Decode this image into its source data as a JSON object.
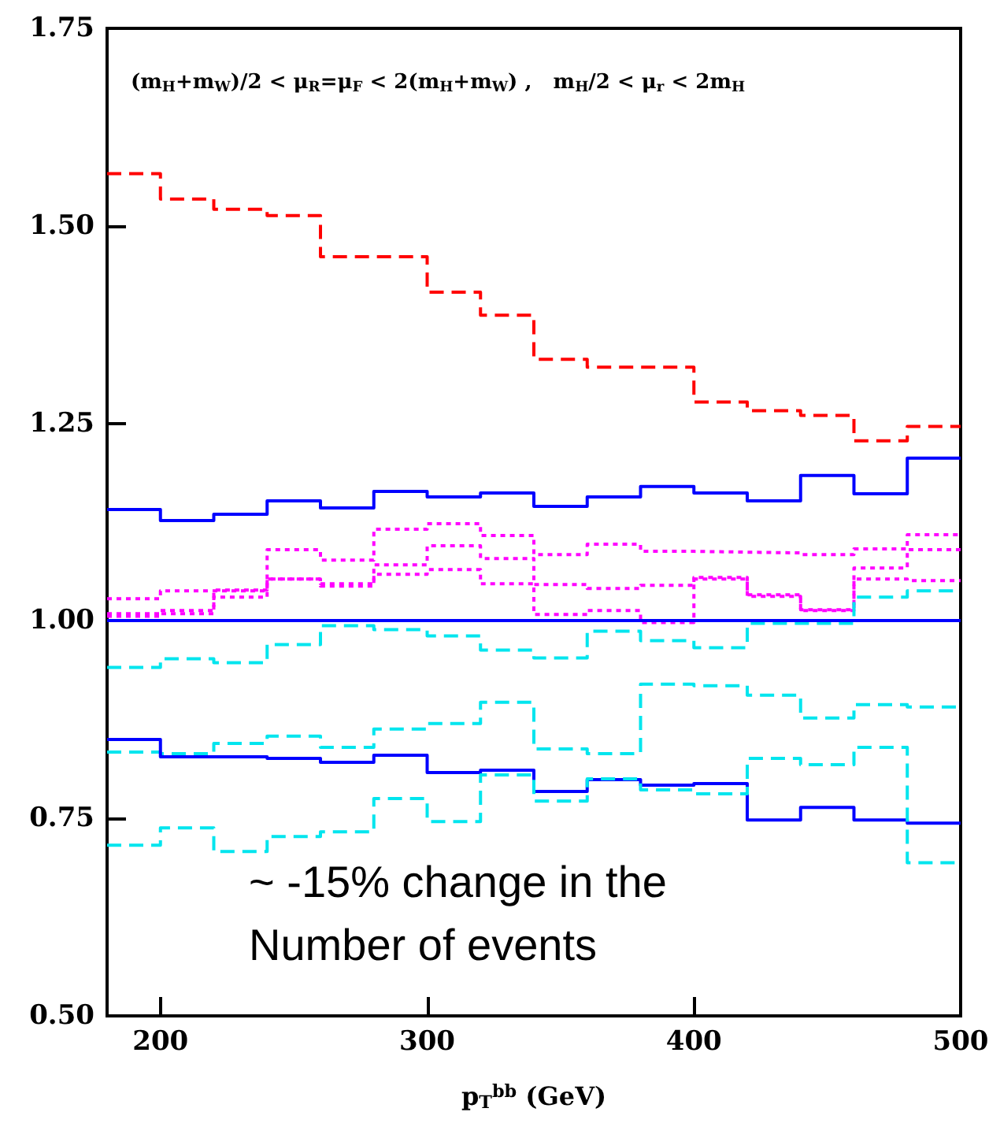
{
  "chart_data": {
    "type": "step",
    "title": "(m$_{H}$+m$_{W}$)/2 < μ$_{R}$=μ$_{F}$ < 2(m$_{H}$+m$_{W}$) ,   m$_{H}$/2 < μ$_{r}$ < 2m$_{H}$",
    "xlabel": "p$_{T}$$^{bb}$ (GeV)",
    "annotations": [
      "~ -15% change in the\nNumber of events"
    ],
    "x": [
      180,
      200,
      220,
      240,
      260,
      280,
      300,
      320,
      340,
      360,
      380,
      400,
      420,
      440,
      460,
      480,
      500
    ],
    "series": [
      {
        "color": "#ff0000",
        "line_style": "dashed",
        "values": [
          1.566,
          1.534,
          1.521,
          1.513,
          1.461,
          1.461,
          1.416,
          1.387,
          1.331,
          1.321,
          1.321,
          1.277,
          1.266,
          1.26,
          1.228,
          1.246,
          1.246
        ]
      },
      {
        "color": "#0000ff",
        "line_style": "solid",
        "values": [
          1.141,
          1.127,
          1.135,
          1.152,
          1.143,
          1.164,
          1.157,
          1.162,
          1.145,
          1.157,
          1.17,
          1.162,
          1.152,
          1.184,
          1.161,
          1.206,
          1.206
        ]
      },
      {
        "color": "#ff00ff",
        "line_style": "dotted",
        "values": [
          1.028,
          1.038,
          1.038,
          1.09,
          1.077,
          1.116,
          1.123,
          1.108,
          1.084,
          1.097,
          1.088,
          1.087,
          1.086,
          1.084,
          1.091,
          1.109,
          1.109
        ]
      },
      {
        "color": "#ff00ff",
        "line_style": "dotted",
        "values": [
          1.009,
          1.013,
          1.039,
          1.053,
          1.044,
          1.071,
          1.095,
          1.079,
          1.046,
          1.041,
          1.045,
          1.055,
          1.033,
          1.014,
          1.067,
          1.09,
          1.09
        ]
      },
      {
        "color": "#ff00ff",
        "line_style": "dotted",
        "values": [
          1.006,
          1.009,
          1.03,
          1.053,
          1.047,
          1.059,
          1.065,
          1.047,
          1.008,
          1.013,
          0.998,
          1.053,
          1.031,
          1.013,
          1.053,
          1.051,
          1.051
        ]
      },
      {
        "color": "#00e5ee",
        "line_style": "dashed",
        "values": [
          0.941,
          0.952,
          0.947,
          0.97,
          0.994,
          0.989,
          0.981,
          0.963,
          0.953,
          0.987,
          0.975,
          0.966,
          0.997,
          0.997,
          1.03,
          1.038,
          1.038
        ]
      },
      {
        "color": "#00e5ee",
        "line_style": "dashed",
        "values": [
          0.834,
          0.832,
          0.845,
          0.854,
          0.84,
          0.863,
          0.87,
          0.897,
          0.838,
          0.832,
          0.92,
          0.918,
          0.906,
          0.877,
          0.894,
          0.891,
          0.891
        ]
      },
      {
        "color": "#0000ff",
        "line_style": "solid",
        "values": [
          0.85,
          0.828,
          0.828,
          0.826,
          0.821,
          0.83,
          0.808,
          0.811,
          0.784,
          0.799,
          0.792,
          0.794,
          0.748,
          0.764,
          0.748,
          0.744,
          0.744
        ]
      },
      {
        "color": "#00e5ee",
        "line_style": "dashed",
        "values": [
          0.716,
          0.738,
          0.708,
          0.727,
          0.733,
          0.775,
          0.746,
          0.805,
          0.772,
          0.8,
          0.786,
          0.781,
          0.826,
          0.818,
          0.84,
          0.694,
          0.694
        ]
      }
    ],
    "ref_lines": [
      {
        "axis": "y",
        "value": 1.0,
        "color": "#0000ff"
      }
    ],
    "xlim": [
      180,
      500
    ],
    "xticks": [
      200,
      300,
      400,
      500
    ],
    "ylim": [
      0.5,
      1.75
    ],
    "yticks": [
      {
        "value": 0.5,
        "label": "0.50"
      },
      {
        "value": 0.75,
        "label": "0.75"
      },
      {
        "value": 1.0,
        "label": "1.00"
      },
      {
        "value": 1.25,
        "label": "1.25"
      },
      {
        "value": 1.5,
        "label": "1.50"
      },
      {
        "value": 1.75,
        "label": "1.75"
      }
    ],
    "grid": false
  }
}
